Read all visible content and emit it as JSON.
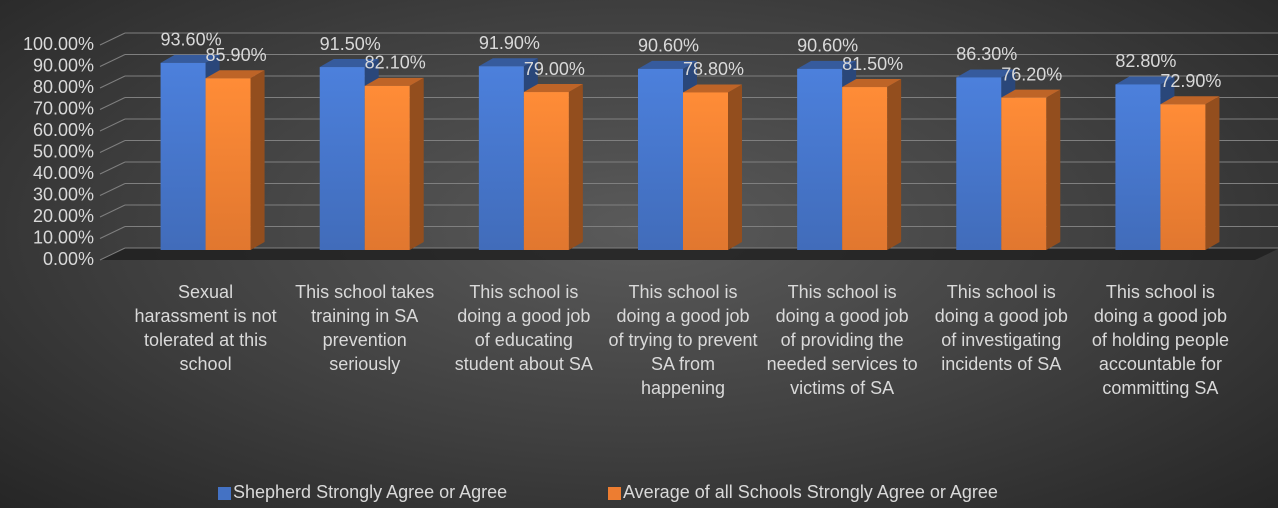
{
  "chart_data": {
    "type": "bar3d",
    "categories": [
      "Sexual harassment is not tolerated at this school",
      "This school takes training in SA prevention seriously",
      "This school is doing a good job of educating student about SA",
      "This school is doing a good job of trying to prevent SA from happening",
      "This school is doing a good job of providing the needed services to victims of SA",
      "This school is doing a good job of investigating incidents of SA",
      "This school is doing a good job of holding people accountable for committing SA"
    ],
    "series": [
      {
        "name": "Shepherd Strongly Agree or Agree",
        "color": "#4472c4",
        "values": [
          93.6,
          91.5,
          91.9,
          90.6,
          90.6,
          86.3,
          82.8
        ],
        "value_labels": [
          "93.60%",
          "91.50%",
          "91.90%",
          "90.60%",
          "90.60%",
          "86.30%",
          "82.80%"
        ]
      },
      {
        "name": "Average of all Schools Strongly Agree or Agree",
        "color": "#ed7d31",
        "values": [
          85.9,
          82.1,
          79.0,
          78.8,
          81.5,
          76.2,
          72.9
        ],
        "value_labels": [
          "85.90%",
          "82.10%",
          "79.00%",
          "78.80%",
          "81.50%",
          "76.20%",
          "72.90%"
        ]
      }
    ],
    "ylim": [
      0,
      100
    ],
    "yticks": [
      {
        "value": 0,
        "label": "0.00%"
      },
      {
        "value": 10,
        "label": "10.00%"
      },
      {
        "value": 20,
        "label": "20.00%"
      },
      {
        "value": 30,
        "label": "30.00%"
      },
      {
        "value": 40,
        "label": "40.00%"
      },
      {
        "value": 50,
        "label": "50.00%"
      },
      {
        "value": 60,
        "label": "60.00%"
      },
      {
        "value": 70,
        "label": "70.00%"
      },
      {
        "value": 80,
        "label": "80.00%"
      },
      {
        "value": 90,
        "label": "90.00%"
      },
      {
        "value": 100,
        "label": "100.00%"
      }
    ],
    "grid": true,
    "legend": "bottom"
  }
}
